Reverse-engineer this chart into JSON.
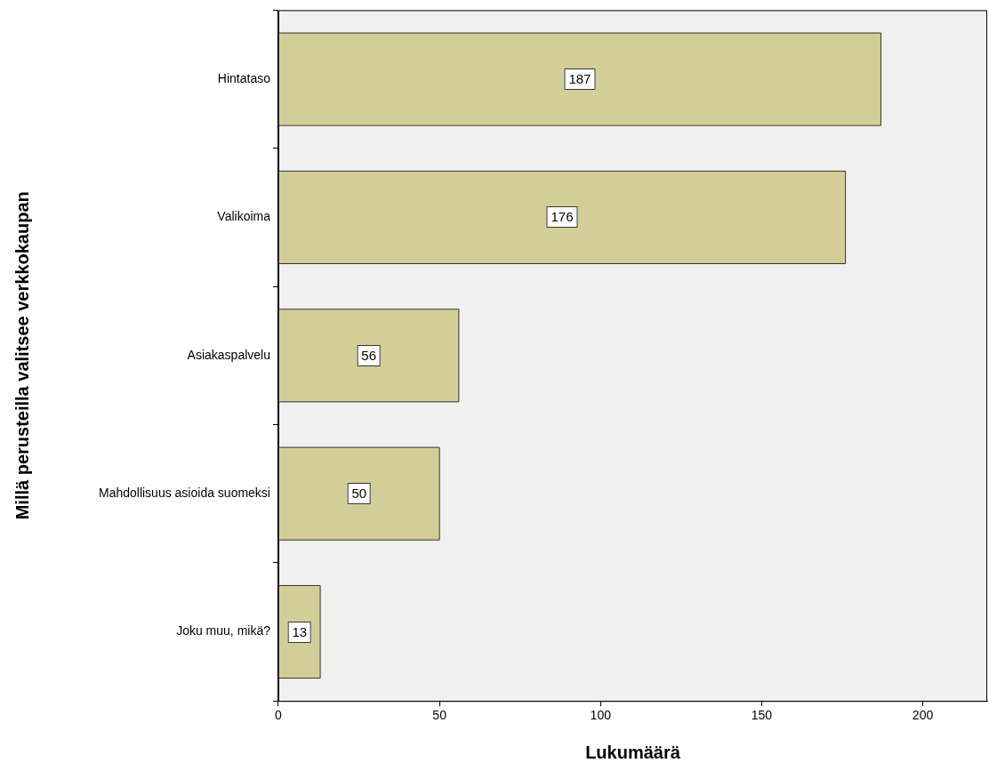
{
  "chart_data": {
    "type": "bar",
    "orientation": "horizontal",
    "xlabel": "Lukumäärä",
    "ylabel": "Millä perusteilla valitsee verkkokaupan",
    "categories": [
      "Hintataso",
      "Valikoima",
      "Asiakaspalvelu",
      "Mahdollisuus asioida suomeksi",
      "Joku muu, mikä?"
    ],
    "values": [
      187,
      176,
      56,
      50,
      13
    ],
    "color": "#d3ce98",
    "xlim": [
      0,
      220
    ],
    "xticks": [
      0,
      50,
      100,
      150,
      200
    ],
    "data_labels": true,
    "grid": false,
    "legend": false
  }
}
